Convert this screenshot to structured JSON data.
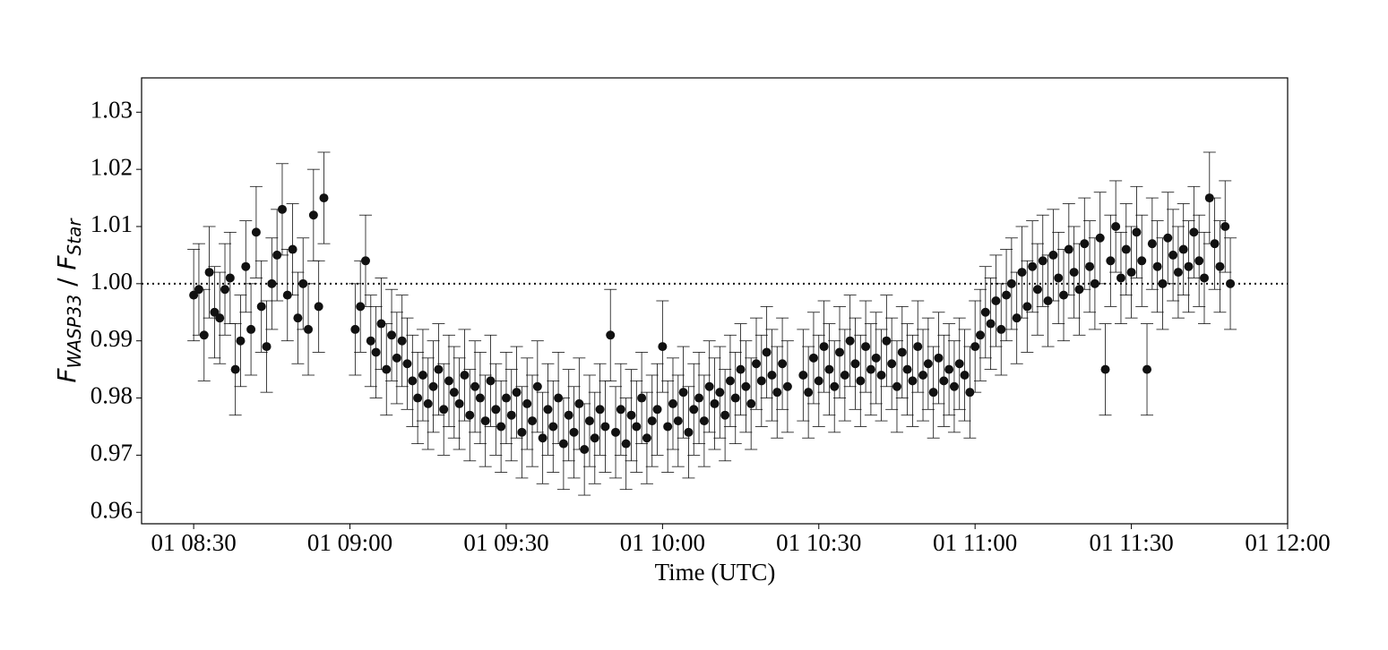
{
  "chart_data": {
    "type": "errorbar-scatter",
    "xlabel": "Time (UTC)",
    "ylabel": [
      "F",
      "WASP33",
      " / ",
      "F",
      "Star"
    ],
    "xlim": [
      "01 08:20",
      "01 12:00"
    ],
    "xticks": [
      "01 08:30",
      "01 09:00",
      "01 09:30",
      "01 10:00",
      "01 10:30",
      "01 11:00",
      "01 11:30",
      "01 12:00"
    ],
    "ylim": [
      0.958,
      1.036
    ],
    "yticks": [
      0.96,
      0.97,
      0.98,
      0.99,
      {
        "value": 1,
        "label": "1.00"
      },
      1.01,
      1.02,
      1.03
    ],
    "hline": 1,
    "x": [
      "01 08:30",
      "01 08:31",
      "01 08:32",
      "01 08:33",
      "01 08:34",
      "01 08:35",
      "01 08:36",
      "01 08:37",
      "01 08:38",
      "01 08:39",
      "01 08:40",
      "01 08:41",
      "01 08:42",
      "01 08:43",
      "01 08:44",
      "01 08:45",
      "01 08:46",
      "01 08:47",
      "01 08:48",
      "01 08:49",
      "01 08:50",
      "01 08:51",
      "01 08:52",
      "01 08:53",
      "01 08:54",
      "01 08:55",
      "01 09:01",
      "01 09:02",
      "01 09:03",
      "01 09:04",
      "01 09:05",
      "01 09:06",
      "01 09:07",
      "01 09:08",
      "01 09:09",
      "01 09:10",
      "01 09:11",
      "01 09:12",
      "01 09:13",
      "01 09:14",
      "01 09:15",
      "01 09:16",
      "01 09:17",
      "01 09:18",
      "01 09:19",
      "01 09:20",
      "01 09:21",
      "01 09:22",
      "01 09:23",
      "01 09:24",
      "01 09:25",
      "01 09:26",
      "01 09:27",
      "01 09:28",
      "01 09:29",
      "01 09:30",
      "01 09:31",
      "01 09:32",
      "01 09:33",
      "01 09:34",
      "01 09:35",
      "01 09:36",
      "01 09:37",
      "01 09:38",
      "01 09:39",
      "01 09:40",
      "01 09:41",
      "01 09:42",
      "01 09:43",
      "01 09:44",
      "01 09:45",
      "01 09:46",
      "01 09:47",
      "01 09:48",
      "01 09:49",
      "01 09:50",
      "01 09:51",
      "01 09:52",
      "01 09:53",
      "01 09:54",
      "01 09:55",
      "01 09:56",
      "01 09:57",
      "01 09:58",
      "01 09:59",
      "01 10:00",
      "01 10:01",
      "01 10:02",
      "01 10:03",
      "01 10:04",
      "01 10:05",
      "01 10:06",
      "01 10:07",
      "01 10:08",
      "01 10:09",
      "01 10:10",
      "01 10:11",
      "01 10:12",
      "01 10:13",
      "01 10:14",
      "01 10:15",
      "01 10:16",
      "01 10:17",
      "01 10:18",
      "01 10:19",
      "01 10:20",
      "01 10:21",
      "01 10:22",
      "01 10:23",
      "01 10:24",
      "01 10:27",
      "01 10:28",
      "01 10:29",
      "01 10:30",
      "01 10:31",
      "01 10:32",
      "01 10:33",
      "01 10:34",
      "01 10:35",
      "01 10:36",
      "01 10:37",
      "01 10:38",
      "01 10:39",
      "01 10:40",
      "01 10:41",
      "01 10:42",
      "01 10:43",
      "01 10:44",
      "01 10:45",
      "01 10:46",
      "01 10:47",
      "01 10:48",
      "01 10:49",
      "01 10:50",
      "01 10:51",
      "01 10:52",
      "01 10:53",
      "01 10:54",
      "01 10:55",
      "01 10:56",
      "01 10:57",
      "01 10:58",
      "01 10:59",
      "01 11:00",
      "01 11:01",
      "01 11:02",
      "01 11:03",
      "01 11:04",
      "01 11:05",
      "01 11:06",
      "01 11:07",
      "01 11:08",
      "01 11:09",
      "01 11:10",
      "01 11:11",
      "01 11:12",
      "01 11:13",
      "01 11:14",
      "01 11:15",
      "01 11:16",
      "01 11:17",
      "01 11:18",
      "01 11:19",
      "01 11:20",
      "01 11:21",
      "01 11:22",
      "01 11:23",
      "01 11:24",
      "01 11:25",
      "01 11:26",
      "01 11:27",
      "01 11:28",
      "01 11:29",
      "01 11:30",
      "01 11:31",
      "01 11:32",
      "01 11:33",
      "01 11:34",
      "01 11:35",
      "01 11:36",
      "01 11:37",
      "01 11:38",
      "01 11:39",
      "01 11:40",
      "01 11:41",
      "01 11:42",
      "01 11:43",
      "01 11:44",
      "01 11:45",
      "01 11:46",
      "01 11:47",
      "01 11:48",
      "01 11:49"
    ],
    "series": [
      {
        "color": "#111111",
        "yerr": 0.008,
        "values": [
          0.998,
          0.999,
          0.991,
          1.002,
          0.995,
          0.994,
          0.999,
          1.001,
          0.985,
          0.99,
          1.003,
          0.992,
          1.009,
          0.996,
          0.989,
          1.0,
          1.005,
          1.013,
          0.998,
          1.006,
          0.994,
          1.0,
          0.992,
          1.012,
          0.996,
          1.015,
          0.992,
          0.996,
          1.004,
          0.99,
          0.988,
          0.993,
          0.985,
          0.991,
          0.987,
          0.99,
          0.986,
          0.983,
          0.98,
          0.984,
          0.979,
          0.982,
          0.985,
          0.978,
          0.983,
          0.981,
          0.979,
          0.984,
          0.977,
          0.982,
          0.98,
          0.976,
          0.983,
          0.978,
          0.975,
          0.98,
          0.977,
          0.981,
          0.974,
          0.979,
          0.976,
          0.982,
          0.973,
          0.978,
          0.975,
          0.98,
          0.972,
          0.977,
          0.974,
          0.979,
          0.971,
          0.976,
          0.973,
          0.978,
          0.975,
          0.991,
          0.974,
          0.978,
          0.972,
          0.977,
          0.975,
          0.98,
          0.973,
          0.976,
          0.978,
          0.989,
          0.975,
          0.979,
          0.976,
          0.981,
          0.974,
          0.978,
          0.98,
          0.976,
          0.982,
          0.979,
          0.981,
          0.977,
          0.983,
          0.98,
          0.985,
          0.982,
          0.979,
          0.986,
          0.983,
          0.988,
          0.984,
          0.981,
          0.986,
          0.982,
          0.984,
          0.981,
          0.987,
          0.983,
          0.989,
          0.985,
          0.982,
          0.988,
          0.984,
          0.99,
          0.986,
          0.983,
          0.989,
          0.985,
          0.987,
          0.984,
          0.99,
          0.986,
          0.982,
          0.988,
          0.985,
          0.983,
          0.989,
          0.984,
          0.986,
          0.981,
          0.987,
          0.983,
          0.985,
          0.982,
          0.986,
          0.984,
          0.981,
          0.989,
          0.991,
          0.995,
          0.993,
          0.997,
          0.992,
          0.998,
          1.0,
          0.994,
          1.002,
          0.996,
          1.003,
          0.999,
          1.004,
          0.997,
          1.005,
          1.001,
          0.998,
          1.006,
          1.002,
          0.999,
          1.007,
          1.003,
          1.0,
          1.008,
          0.985,
          1.004,
          1.01,
          1.001,
          1.006,
          1.002,
          1.009,
          1.004,
          0.985,
          1.007,
          1.003,
          1.0,
          1.008,
          1.005,
          1.002,
          1.006,
          1.003,
          1.009,
          1.004,
          1.001,
          1.015,
          1.007,
          1.003,
          1.01,
          1.0
        ]
      }
    ]
  }
}
